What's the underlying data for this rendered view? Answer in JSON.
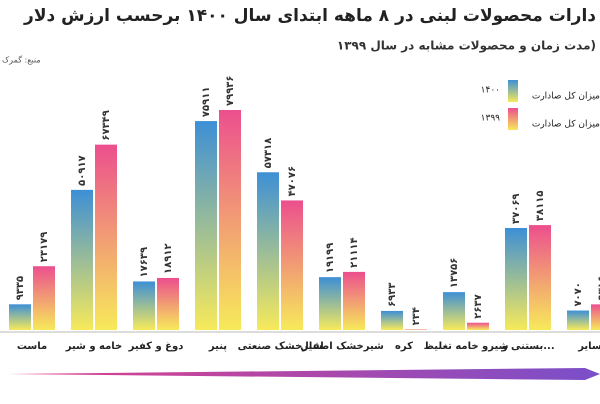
{
  "chart_data": {
    "type": "bar",
    "title": "دارات محصولات لبنی در ۸ ماهه ابتدای سال ۱۴۰۰ برحسب ارزش دلار",
    "subtitle": "مدت زمان و محصولات مشابه در سال ۱۳۹۹)",
    "source": "منبع: گمرک",
    "legend_label": "میزان کل صادارت",
    "categories": [
      "ماست",
      "خامه و شیر",
      "دوغ و کفیر",
      "پنیر",
      "شیرخشک صنعتی",
      "شیرخشک اطفال",
      "کره",
      "شیرو خامه تغلیظ",
      "بستنی و...",
      "سایر"
    ],
    "series": [
      {
        "name": "۱۴۰۰",
        "color": "#3d8fd6",
        "values": [
          9335,
          50917,
          17639,
          75911,
          57318,
          19199,
          6933,
          13756,
          37069,
          7070
        ],
        "value_labels": [
          "۹۳۳۵",
          "۵۰۹۱۷",
          "۱۷۶۳۹",
          "۷۵۹۱۱",
          "۵۷۳۱۸",
          "۱۹۱۹۹",
          "۶۹۳۳",
          "۱۳۷۵۶",
          "۳۷۰۶۹",
          "۷۰۷۰"
        ]
      },
      {
        "name": "۱۳۹۹",
        "color": "#ec4f8e",
        "values": [
          23179,
          67349,
          18912,
          79936,
          47076,
          21114,
          234,
          2637,
          38115,
          9316
        ],
        "value_labels": [
          "۲۳۱۷۹",
          "۶۷۳۴۹",
          "۱۸۹۱۲",
          "۷۹۹۳۶",
          "۴۷۰۷۶",
          "۲۱۱۱۴",
          "۲۳۴",
          "۲۶۳۷",
          "۳۸۱۱۵",
          "۹۳۱۶"
        ]
      }
    ]
  }
}
